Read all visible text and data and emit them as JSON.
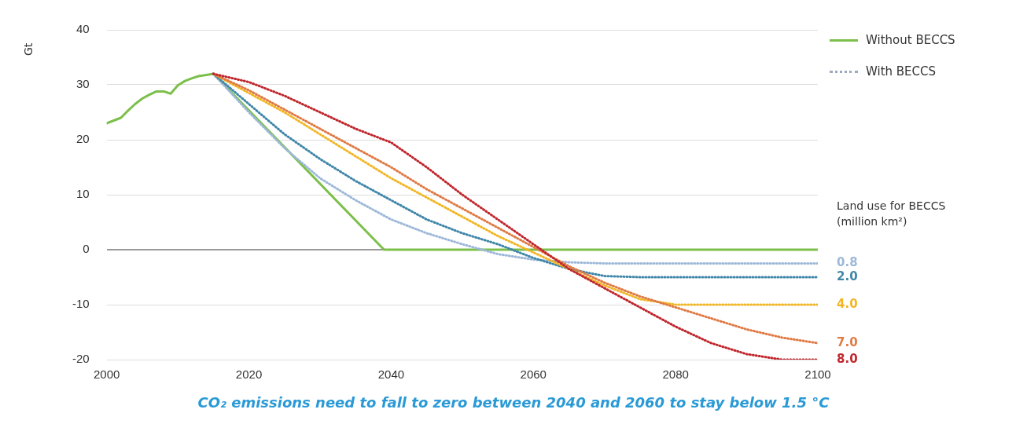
{
  "chart_data": {
    "type": "line",
    "title": "CO₂ emissions need to fall to zero between 2040 and 2060 to stay below 1.5 °C",
    "ylabel": "Gt",
    "legend_title": "Land use for BECCS (million km²)",
    "annotations": [
      "With BECCS"
    ],
    "xlim": [
      2000,
      2100
    ],
    "xticks": [
      2000,
      2020,
      2040,
      2060,
      2080,
      2100
    ],
    "ylim": [
      -20,
      40
    ],
    "yticks": [
      -20,
      -10,
      0,
      10,
      20,
      30,
      40
    ],
    "grid": "y",
    "legend": "top right",
    "marker": "none",
    "series": [
      {
        "name": "Without BECCS",
        "color": "#7cbf4a",
        "line_style": "solid",
        "x": [
          2000,
          2001,
          2002,
          2003,
          2004,
          2005,
          2006,
          2007,
          2008,
          2009,
          2010,
          2011,
          2012,
          2013,
          2014,
          2015,
          2039,
          2100
        ],
        "values": [
          23,
          23.5,
          24,
          25.3,
          26.5,
          27.5,
          28.2,
          28.8,
          28.8,
          28.4,
          29.9,
          30.7,
          31.2,
          31.6,
          31.8,
          32,
          0,
          0
        ]
      },
      {
        "name": "0.8",
        "color": "#9db8d9",
        "line_style": "dotted",
        "x": [
          2015,
          2020,
          2025,
          2030,
          2035,
          2040,
          2045,
          2050,
          2055,
          2060,
          2065,
          2070,
          2075,
          2080,
          2085,
          2090,
          2095,
          2100
        ],
        "values": [
          32,
          25,
          18.5,
          13,
          9,
          5.5,
          3,
          1,
          -0.8,
          -1.8,
          -2.3,
          -2.5,
          -2.5,
          -2.5,
          -2.5,
          -2.5,
          -2.5,
          -2.5
        ]
      },
      {
        "name": "2.0",
        "color": "#3f86a8",
        "line_style": "dotted",
        "x": [
          2015,
          2020,
          2025,
          2030,
          2035,
          2040,
          2045,
          2050,
          2055,
          2060,
          2065,
          2070,
          2075,
          2080,
          2085,
          2090,
          2095,
          2100
        ],
        "values": [
          32,
          26.5,
          21,
          16.5,
          12.5,
          9,
          5.5,
          3,
          1,
          -1.5,
          -3.5,
          -4.8,
          -5,
          -5,
          -5,
          -5,
          -5,
          -5
        ]
      },
      {
        "name": "4.0",
        "color": "#f2b625",
        "line_style": "dotted",
        "x": [
          2015,
          2020,
          2025,
          2030,
          2035,
          2040,
          2045,
          2050,
          2055,
          2060,
          2065,
          2070,
          2075,
          2080,
          2085,
          2090,
          2095,
          2100
        ],
        "values": [
          32,
          28.5,
          25,
          21,
          17,
          13,
          9.5,
          6,
          2.5,
          -0.5,
          -3.5,
          -6.5,
          -9,
          -10,
          -10,
          -10,
          -10,
          -10
        ]
      },
      {
        "name": "7.0",
        "color": "#e07a45",
        "line_style": "dotted",
        "x": [
          2015,
          2020,
          2025,
          2030,
          2035,
          2040,
          2045,
          2050,
          2055,
          2060,
          2065,
          2070,
          2075,
          2080,
          2085,
          2090,
          2095,
          2100
        ],
        "values": [
          32,
          29,
          25.5,
          22,
          18.5,
          15,
          11,
          7.5,
          4,
          0.5,
          -3,
          -6,
          -8.5,
          -10.5,
          -12.5,
          -14.5,
          -16,
          -17
        ]
      },
      {
        "name": "8.0",
        "color": "#c0272d",
        "line_style": "dotted",
        "x": [
          2015,
          2020,
          2025,
          2030,
          2035,
          2040,
          2045,
          2050,
          2055,
          2060,
          2065,
          2070,
          2075,
          2080,
          2085,
          2090,
          2095,
          2100
        ],
        "values": [
          32,
          30.5,
          28,
          25,
          22,
          19.5,
          15,
          10,
          5.5,
          1,
          -3.5,
          -7,
          -10.5,
          -14,
          -17,
          -19,
          -20,
          -20
        ]
      }
    ]
  }
}
